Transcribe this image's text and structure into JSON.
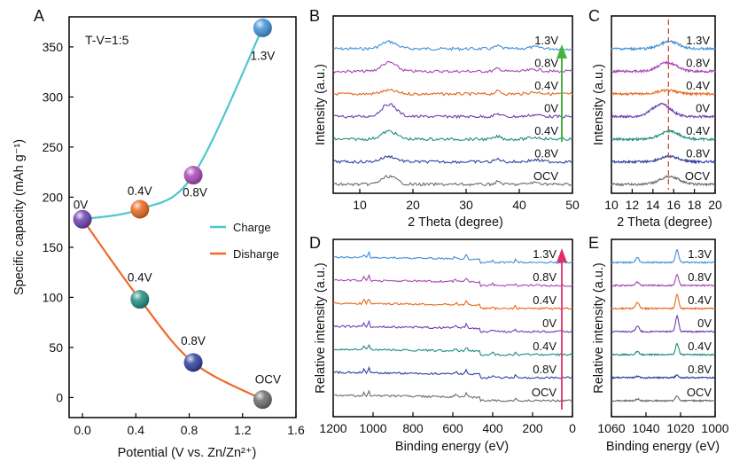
{
  "colors": {
    "charge": "#4ec6cf",
    "discharge": "#ee6a2c",
    "ocv": "#6b6b6b",
    "v08_dis": "#2f3f9e",
    "v04_dis": "#1f8b7e",
    "v0": "#6a3fb0",
    "v04_ch": "#e7661e",
    "v08_ch": "#a845b5",
    "v13": "#3f8fd6",
    "arrow_green": "#46b440",
    "arrow_pink": "#e0306c",
    "dash_red": "#e0443a"
  },
  "chart_data": [
    {
      "id": "A",
      "panel_label": "A",
      "type": "line",
      "annotation": "T-V=1:5",
      "xlabel": "Potential (V vs. Zn/Zn²⁺)",
      "ylabel": "Specific capacity (mAh g⁻¹)",
      "xlim": [
        -0.1,
        1.6
      ],
      "ylim": [
        -20,
        380
      ],
      "xticks": [
        "0.0",
        "0.4",
        "0.8",
        "1.2",
        "1.6"
      ],
      "xtick_values": [
        0,
        0.4,
        0.8,
        1.2,
        1.6
      ],
      "yticks": [
        "0",
        "50",
        "100",
        "150",
        "200",
        "250",
        "300",
        "350"
      ],
      "ytick_values": [
        0,
        50,
        100,
        150,
        200,
        250,
        300,
        350
      ],
      "legend": "center-right",
      "series": [
        {
          "name": "Charge",
          "color_key": "charge",
          "points": [
            {
              "x": 0.0,
              "y": 178,
              "label": "0V",
              "color_key": "v0"
            },
            {
              "x": 0.43,
              "y": 188,
              "label": "0.4V",
              "color_key": "v04_ch"
            },
            {
              "x": 0.83,
              "y": 222,
              "label": "0.8V",
              "color_key": "v08_ch"
            },
            {
              "x": 1.35,
              "y": 369,
              "label": "1.3V",
              "color_key": "v13"
            }
          ]
        },
        {
          "name": "Disharge",
          "color_key": "discharge",
          "points": [
            {
              "x": 0.0,
              "y": 178,
              "label": "",
              "color_key": "v0"
            },
            {
              "x": 0.43,
              "y": 98,
              "label": "0.4V",
              "color_key": "v04_dis"
            },
            {
              "x": 0.83,
              "y": 35,
              "label": "0.8V",
              "color_key": "v08_dis"
            },
            {
              "x": 1.35,
              "y": -2,
              "label": "OCV",
              "color_key": "ocv"
            }
          ]
        }
      ]
    },
    {
      "id": "B",
      "panel_label": "B",
      "type": "line",
      "xlabel": "2 Theta (degree)",
      "ylabel": "Intensity (a.u.)",
      "xlim": [
        5,
        50
      ],
      "xticks": [
        "10",
        "20",
        "30",
        "40",
        "50"
      ],
      "xtick_values": [
        10,
        20,
        30,
        40,
        50
      ],
      "peaks": [
        15.5,
        36
      ],
      "arrow": "green-up",
      "series_labels": [
        "1.3V",
        "0.8V",
        "0.4V",
        "0V",
        "0.4V",
        "0.8V",
        "OCV"
      ]
    },
    {
      "id": "C",
      "panel_label": "C",
      "type": "line",
      "xlabel": "2 Theta (degree)",
      "ylabel": "Intensity (a.u.)",
      "xlim": [
        10,
        20
      ],
      "xticks": [
        "10",
        "12",
        "14",
        "16",
        "18",
        "20"
      ],
      "xtick_values": [
        10,
        12,
        14,
        16,
        18,
        20
      ],
      "reference_x": 15.5,
      "series_labels": [
        "1.3V",
        "0.8V",
        "0.4V",
        "0V",
        "0.4V",
        "0.8V",
        "OCV"
      ]
    },
    {
      "id": "D",
      "panel_label": "D",
      "type": "line",
      "xlabel": "Binding energy (eV)",
      "ylabel": "Relative intensity (a.u.)",
      "xlim": [
        1200,
        0
      ],
      "xticks": [
        "1200",
        "1000",
        "800",
        "600",
        "400",
        "200",
        "0"
      ],
      "xtick_values": [
        1200,
        1000,
        800,
        600,
        400,
        200,
        0
      ],
      "arrow": "pink-up",
      "series_labels": [
        "1.3V",
        "0.8V",
        "0.4V",
        "0V",
        "0.4V",
        "0.8V",
        "OCV"
      ]
    },
    {
      "id": "E",
      "panel_label": "E",
      "type": "line",
      "xlabel": "Binding energy (eV)",
      "ylabel": "Relative intensity (a.u.)",
      "xlim": [
        1060,
        1000
      ],
      "xticks": [
        "1060",
        "1040",
        "1020",
        "1000"
      ],
      "xtick_values": [
        1060,
        1040,
        1020,
        1000
      ],
      "series_labels": [
        "1.3V",
        "0.8V",
        "0.4V",
        "0V",
        "0.4V",
        "0.8V",
        "OCV"
      ]
    }
  ],
  "stack_color_keys": [
    "v13",
    "v08_ch",
    "v04_ch",
    "v0",
    "v04_dis",
    "v08_dis",
    "ocv"
  ]
}
